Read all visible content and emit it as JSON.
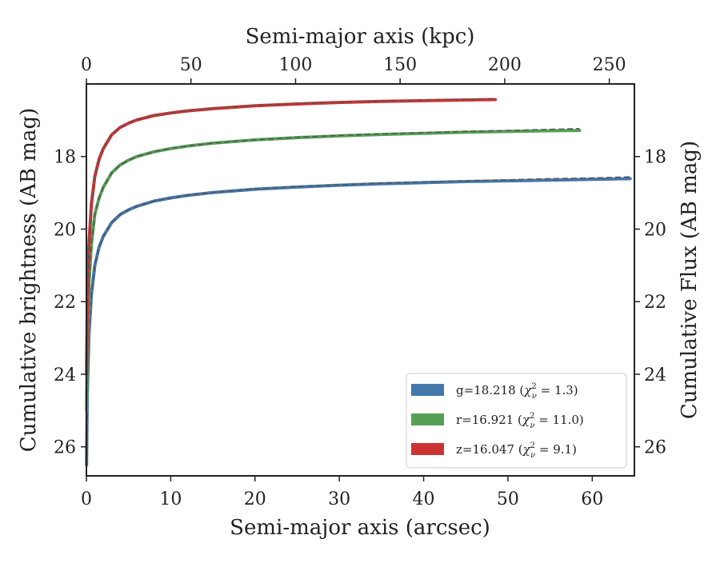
{
  "chart_data": {
    "type": "line",
    "title": "",
    "xlabel": "Semi-major axis (arcsec)",
    "x_top_label": "Semi-major axis (kpc)",
    "ylabel": "Cumulative brightness (AB mag)",
    "y_right_label": "Cumulative Flux (AB mag)",
    "xlim": [
      0,
      65
    ],
    "x_top_lim": [
      0,
      262
    ],
    "ylim": [
      26.8,
      16.0
    ],
    "y_inverted": true,
    "x_ticks": [
      "0",
      "10",
      "20",
      "30",
      "40",
      "50",
      "60"
    ],
    "x_top_ticks": [
      "0",
      "50",
      "100",
      "150",
      "200",
      "250"
    ],
    "y_ticks": [
      "18",
      "20",
      "22",
      "24",
      "26"
    ],
    "y_right_ticks": [
      "18",
      "20",
      "22",
      "24",
      "26"
    ],
    "grid": false,
    "legend_position": "lower-right",
    "series": [
      {
        "name": "g=18.218",
        "chi2": "1.3",
        "color": "#4477aa",
        "x": [
          0.02,
          0.1,
          0.3,
          0.6,
          1,
          1.5,
          2,
          3,
          4,
          5,
          6,
          8,
          10,
          12,
          15,
          20,
          25,
          30,
          35,
          40,
          45,
          50,
          55,
          60,
          64.5
        ],
        "y": [
          26.5,
          24.6,
          22.9,
          21.8,
          21.0,
          20.5,
          20.2,
          19.82,
          19.6,
          19.47,
          19.37,
          19.23,
          19.14,
          19.07,
          18.99,
          18.9,
          18.84,
          18.79,
          18.75,
          18.72,
          18.69,
          18.67,
          18.65,
          18.63,
          18.61
        ],
        "model": [
          26.5,
          24.6,
          22.9,
          21.8,
          21.0,
          20.5,
          20.2,
          19.82,
          19.6,
          19.47,
          19.37,
          19.23,
          19.14,
          19.07,
          18.99,
          18.89,
          18.83,
          18.78,
          18.73,
          18.7,
          18.67,
          18.64,
          18.61,
          18.59,
          18.56
        ]
      },
      {
        "name": "r=16.921",
        "chi2": "11.0",
        "color": "#55a055",
        "x": [
          0.02,
          0.1,
          0.3,
          0.6,
          1,
          1.5,
          2,
          3,
          4,
          5,
          6,
          8,
          10,
          12,
          15,
          20,
          25,
          30,
          35,
          40,
          45,
          50,
          55,
          58.5
        ],
        "y": [
          25.0,
          23.2,
          21.5,
          20.4,
          19.6,
          19.15,
          18.85,
          18.45,
          18.23,
          18.1,
          18.0,
          17.87,
          17.78,
          17.71,
          17.63,
          17.54,
          17.48,
          17.43,
          17.39,
          17.36,
          17.33,
          17.31,
          17.29,
          17.28
        ],
        "model": [
          25.0,
          23.2,
          21.5,
          20.4,
          19.6,
          19.15,
          18.85,
          18.45,
          18.23,
          18.1,
          18.0,
          17.87,
          17.78,
          17.71,
          17.63,
          17.54,
          17.47,
          17.42,
          17.38,
          17.34,
          17.31,
          17.28,
          17.25,
          17.23
        ]
      },
      {
        "name": "z=16.047",
        "chi2": "9.1",
        "color": "#cc3333",
        "x": [
          0.02,
          0.1,
          0.3,
          0.6,
          1,
          1.5,
          2,
          3,
          4,
          5,
          6,
          8,
          10,
          12,
          15,
          20,
          25,
          30,
          35,
          40,
          45,
          48.5
        ],
        "y": [
          24.0,
          22.2,
          20.4,
          19.3,
          18.55,
          18.08,
          17.78,
          17.4,
          17.2,
          17.08,
          16.99,
          16.87,
          16.8,
          16.74,
          16.68,
          16.6,
          16.55,
          16.51,
          16.48,
          16.46,
          16.44,
          16.43
        ],
        "model": [
          24.0,
          22.2,
          20.4,
          19.3,
          18.55,
          18.08,
          17.78,
          17.4,
          17.2,
          17.08,
          16.99,
          16.87,
          16.8,
          16.74,
          16.67,
          16.59,
          16.54,
          16.5,
          16.47,
          16.44,
          16.42,
          16.4
        ]
      }
    ]
  }
}
